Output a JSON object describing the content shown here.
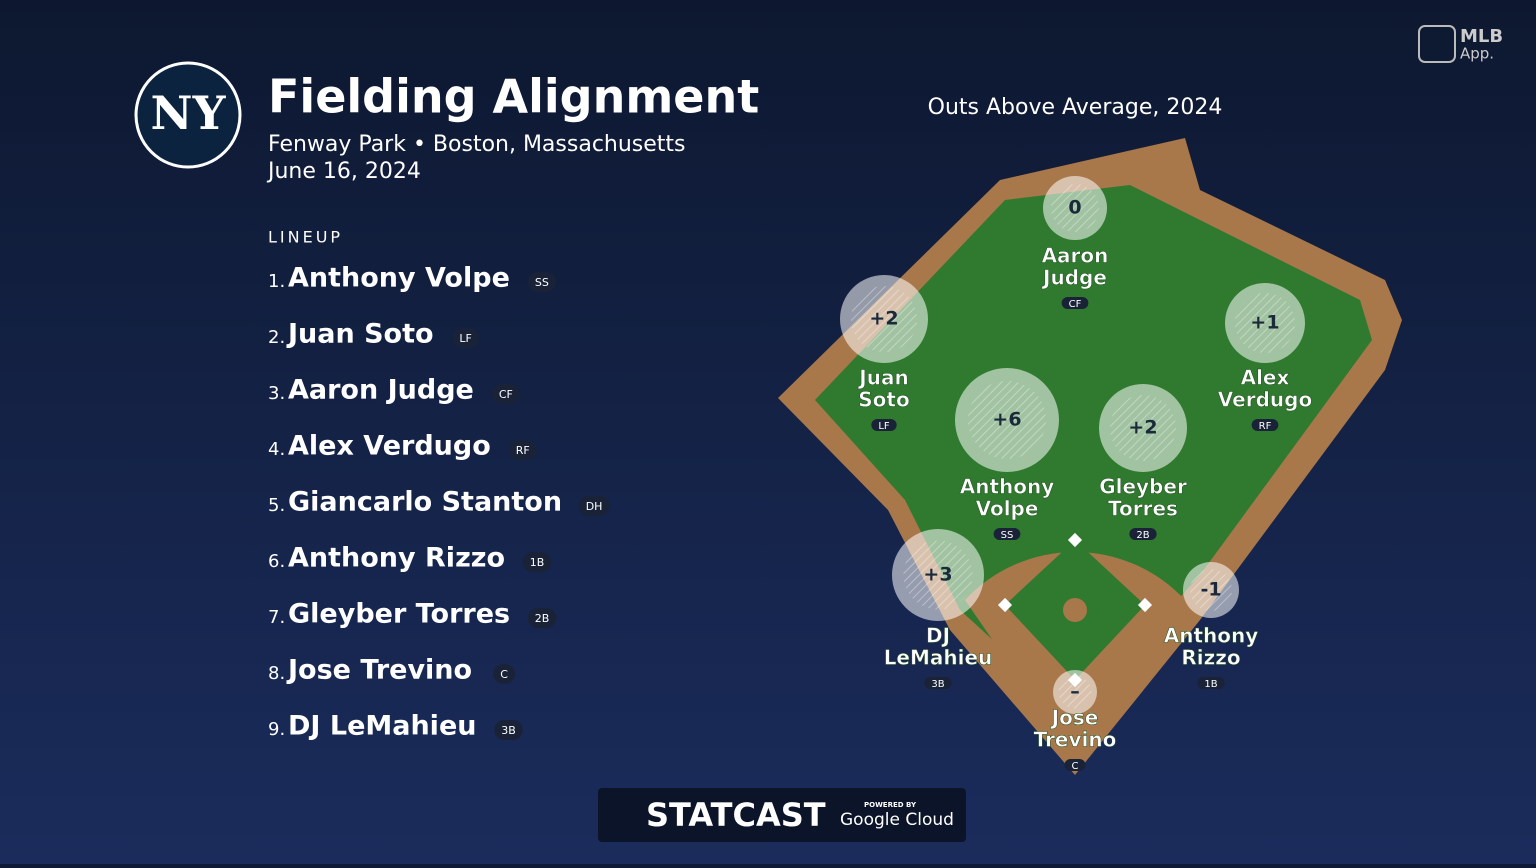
{
  "header": {
    "logo": "NY",
    "title": "Fielding Alignment",
    "subtitle": "Fenway Park • Boston, Massachusetts",
    "date": "June 16, 2024"
  },
  "brand": {
    "mlb": "MLB",
    "app": "App."
  },
  "lineup": {
    "label": "LINEUP",
    "entries": [
      {
        "num": "1.",
        "name": "Anthony Volpe",
        "pos": "SS"
      },
      {
        "num": "2.",
        "name": "Juan Soto",
        "pos": "LF"
      },
      {
        "num": "3.",
        "name": "Aaron Judge",
        "pos": "CF"
      },
      {
        "num": "4.",
        "name": "Alex Verdugo",
        "pos": "RF"
      },
      {
        "num": "5.",
        "name": "Giancarlo Stanton",
        "pos": "DH"
      },
      {
        "num": "6.",
        "name": "Anthony Rizzo",
        "pos": "1B"
      },
      {
        "num": "7.",
        "name": "Gleyber Torres",
        "pos": "2B"
      },
      {
        "num": "8.",
        "name": "Jose Trevino",
        "pos": "C"
      },
      {
        "num": "9.",
        "name": "DJ LeMahieu",
        "pos": "3B"
      }
    ]
  },
  "field": {
    "title": "Outs Above Average, 2024",
    "players": [
      {
        "oaa": "0",
        "name": [
          "Aaron",
          "Judge"
        ],
        "pos": "CF"
      },
      {
        "oaa": "+2",
        "name": [
          "Juan",
          "Soto"
        ],
        "pos": "LF"
      },
      {
        "oaa": "+1",
        "name": [
          "Alex",
          "Verdugo"
        ],
        "pos": "RF"
      },
      {
        "oaa": "+6",
        "name": [
          "Anthony",
          "Volpe"
        ],
        "pos": "SS"
      },
      {
        "oaa": "+2",
        "name": [
          "Gleyber",
          "Torres"
        ],
        "pos": "2B"
      },
      {
        "oaa": "+3",
        "name": [
          "DJ",
          "LeMahieu"
        ],
        "pos": "3B"
      },
      {
        "oaa": "-1",
        "name": [
          "Anthony",
          "Rizzo"
        ],
        "pos": "1B"
      },
      {
        "oaa": "–",
        "name": [
          "Jose",
          "Trevino"
        ],
        "pos": "C"
      }
    ]
  },
  "footer": {
    "statcast": "STATCAST",
    "powered": "POWERED BY",
    "cloud": "Google Cloud"
  }
}
